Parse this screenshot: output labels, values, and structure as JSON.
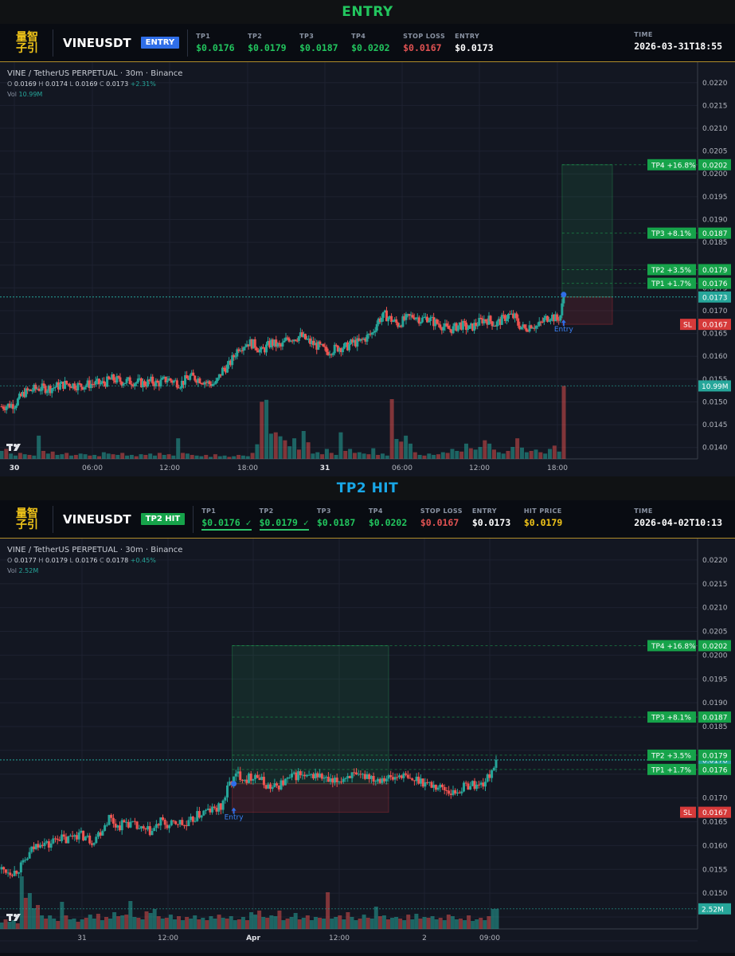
{
  "panels": [
    {
      "section_title": "ENTRY",
      "title_color": "#22c55e",
      "logo": [
        "量智",
        "子引"
      ],
      "symbol": "VINEUSDT",
      "badge": "ENTRY",
      "badge_color": "#2f6ee8",
      "fields": [
        {
          "label": "TP1",
          "value": "$0.0176",
          "color": "#22c55e",
          "hit": false
        },
        {
          "label": "TP2",
          "value": "$0.0179",
          "color": "#22c55e",
          "hit": false
        },
        {
          "label": "TP3",
          "value": "$0.0187",
          "color": "#22c55e",
          "hit": false
        },
        {
          "label": "TP4",
          "value": "$0.0202",
          "color": "#22c55e",
          "hit": false
        },
        {
          "label": "STOP LOSS",
          "value": "$0.0167",
          "color": "#e05252",
          "hit": false
        },
        {
          "label": "ENTRY",
          "value": "$0.0173",
          "color": "#ffffff",
          "hit": false
        }
      ],
      "time_label": "TIME",
      "time_value": "2026-03-31T18:55",
      "legend": {
        "title": "VINE / TetherUS PERPETUAL · 30m · Binance",
        "o": "0.0169",
        "h": "0.0174",
        "l": "0.0169",
        "c": "0.0173",
        "change": "+2.31%",
        "vol_label": "Vol",
        "vol": "10.99M"
      },
      "chart_data": {
        "type": "candlestick",
        "ylim": [
          0.01375,
          0.02245
        ],
        "yticks": [
          "0.0220",
          "0.0215",
          "0.0210",
          "0.0205",
          "0.0200",
          "0.0195",
          "0.0190",
          "0.0185",
          "0.0175",
          "0.0170",
          "0.0165",
          "0.0160",
          "0.0155",
          "0.0150",
          "0.0145",
          "0.0140"
        ],
        "xticks": [
          "30",
          "06:00",
          "12:00",
          "18:00",
          "31",
          "06:00",
          "12:00",
          "18:00"
        ],
        "bold_xticks": [
          "30",
          "31"
        ],
        "close_path": [
          [
            0,
            0.0149
          ],
          [
            8,
            0.01495
          ],
          [
            14,
            0.0152
          ],
          [
            22,
            0.0153
          ],
          [
            30,
            0.0153
          ],
          [
            40,
            0.0154
          ],
          [
            48,
            0.01535
          ],
          [
            56,
            0.0154
          ],
          [
            62,
            0.0154
          ],
          [
            68,
            0.0155
          ],
          [
            74,
            0.01545
          ],
          [
            80,
            0.01545
          ],
          [
            88,
            0.0154
          ],
          [
            92,
            0.01545
          ],
          [
            96,
            0.0154
          ],
          [
            102,
            0.0155
          ],
          [
            110,
            0.0154
          ],
          [
            116,
            0.01555
          ],
          [
            122,
            0.0155
          ],
          [
            128,
            0.0154
          ],
          [
            132,
            0.0154
          ],
          [
            136,
            0.0157
          ],
          [
            140,
            0.0158
          ],
          [
            146,
            0.0162
          ],
          [
            152,
            0.0163
          ],
          [
            156,
            0.01625
          ],
          [
            160,
            0.0161
          ],
          [
            166,
            0.0163
          ],
          [
            172,
            0.0162
          ],
          [
            176,
            0.0164
          ],
          [
            180,
            0.0164
          ],
          [
            184,
            0.01645
          ],
          [
            190,
            0.0163
          ],
          [
            196,
            0.0162
          ],
          [
            200,
            0.0161
          ],
          [
            204,
            0.01615
          ],
          [
            208,
            0.0162
          ],
          [
            212,
            0.0162
          ],
          [
            216,
            0.0163
          ],
          [
            220,
            0.0163
          ],
          [
            224,
            0.0164
          ],
          [
            228,
            0.0165
          ],
          [
            232,
            0.0168
          ],
          [
            236,
            0.0169
          ],
          [
            240,
            0.0168
          ],
          [
            244,
            0.0167
          ],
          [
            248,
            0.0168
          ],
          [
            254,
            0.0169
          ],
          [
            258,
            0.0168
          ],
          [
            262,
            0.01685
          ],
          [
            266,
            0.01675
          ],
          [
            270,
            0.0167
          ],
          [
            274,
            0.0166
          ],
          [
            278,
            0.0166
          ],
          [
            282,
            0.0167
          ],
          [
            288,
            0.0166
          ],
          [
            292,
            0.0167
          ],
          [
            296,
            0.0168
          ],
          [
            300,
            0.0168
          ],
          [
            304,
            0.0167
          ],
          [
            308,
            0.0168
          ],
          [
            312,
            0.0169
          ],
          [
            316,
            0.01685
          ],
          [
            318,
            0.0167
          ],
          [
            322,
            0.0166
          ],
          [
            326,
            0.0167
          ],
          [
            330,
            0.01665
          ],
          [
            334,
            0.0168
          ],
          [
            338,
            0.0169
          ],
          [
            342,
            0.0168
          ],
          [
            344,
            0.0169
          ],
          [
            346,
            0.0173
          ]
        ],
        "volumes_M": [
          1.2,
          1.5,
          0.8,
          0.5,
          0.9,
          0.7,
          0.6,
          0.5,
          3.5,
          1.2,
          0.8,
          1.1,
          0.6,
          0.7,
          0.9,
          0.5,
          0.6,
          0.8,
          0.7,
          0.5,
          0.6,
          0.4,
          1.0,
          0.8,
          0.7,
          0.6,
          0.9,
          0.5,
          0.6,
          0.4,
          0.7,
          0.6,
          0.8,
          0.5,
          0.9,
          0.6,
          0.7,
          0.5,
          3.1,
          0.9,
          0.8,
          0.6,
          0.5,
          0.4,
          0.6,
          0.3,
          0.7,
          0.4,
          0.5,
          0.3,
          0.4,
          0.6,
          0.5,
          0.4,
          0.9,
          2.2,
          8.6,
          8.9,
          3.8,
          4.0,
          3.4,
          2.8,
          1.9,
          3.1,
          1.4,
          4.2,
          2.5,
          0.8,
          1.0,
          0.7,
          1.5,
          0.9,
          0.6,
          4.0,
          1.2,
          1.5,
          0.9,
          1.0,
          0.8,
          0.7,
          1.6,
          0.6,
          0.8,
          0.5,
          9.0,
          3.0,
          2.6,
          3.5,
          2.3,
          1.0,
          0.6,
          0.5,
          0.8,
          0.6,
          0.7,
          1.0,
          0.9,
          1.5,
          1.2,
          1.1,
          2.3,
          1.6,
          1.4,
          1.8,
          2.8,
          2.3,
          1.4,
          1.0,
          0.8,
          1.2,
          1.8,
          3.1,
          1.7,
          1.0,
          1.2,
          1.4,
          1.0,
          0.8,
          1.5,
          2.0,
          1.1,
          10.99
        ],
        "targets": [
          {
            "tag": "TP4 +16.8%",
            "price": "0.0202",
            "value": 0.0202
          },
          {
            "tag": "TP3 +8.1%",
            "price": "0.0187",
            "value": 0.0187
          },
          {
            "tag": "TP2 +3.5%",
            "price": "0.0179",
            "value": 0.0179
          },
          {
            "tag": "TP1 +1.7%",
            "price": "0.0176",
            "value": 0.0176
          }
        ],
        "current_price": {
          "label": "0.0173",
          "value": 0.0173
        },
        "stop": {
          "tag": "SL",
          "price": "0.0167",
          "value": 0.0167
        },
        "entry": {
          "label": "Entry",
          "value": 0.0173
        },
        "volume_label": "10.99M",
        "trade_box": {
          "start": 346,
          "end": 376
        }
      }
    },
    {
      "section_title": "TP2 HIT",
      "title_color": "#19a8e8",
      "logo": [
        "量智",
        "子引"
      ],
      "symbol": "VINEUSDT",
      "badge": "TP2 HIT",
      "badge_color": "#16a34a",
      "fields": [
        {
          "label": "TP1",
          "value": "$0.0176 ✓",
          "color": "#22c55e",
          "hit": true
        },
        {
          "label": "TP2",
          "value": "$0.0179 ✓",
          "color": "#22c55e",
          "hit": true
        },
        {
          "label": "TP3",
          "value": "$0.0187",
          "color": "#22c55e",
          "hit": false
        },
        {
          "label": "TP4",
          "value": "$0.0202",
          "color": "#22c55e",
          "hit": false
        },
        {
          "label": "STOP LOSS",
          "value": "$0.0167",
          "color": "#e05252",
          "hit": false
        },
        {
          "label": "ENTRY",
          "value": "$0.0173",
          "color": "#ffffff",
          "hit": false
        },
        {
          "label": "HIT PRICE",
          "value": "$0.0179",
          "color": "#f0c419",
          "hit": false
        }
      ],
      "time_label": "TIME",
      "time_value": "2026-04-02T10:13",
      "legend": {
        "title": "VINE / TetherUS PERPETUAL · 30m · Binance",
        "o": "0.0177",
        "h": "0.0179",
        "l": "0.0176",
        "c": "0.0178",
        "change": "+0.45%",
        "vol_label": "Vol",
        "vol": "2.52M"
      },
      "chart_data": {
        "type": "candlestick",
        "ylim": [
          0.01425,
          0.02245
        ],
        "yticks": [
          "0.0220",
          "0.0215",
          "0.0210",
          "0.0205",
          "0.0200",
          "0.0195",
          "0.0190",
          "0.0185",
          "0.0170",
          "0.0165",
          "0.0160",
          "0.0155",
          "0.0150"
        ],
        "xticks": [
          "31",
          "12:00",
          "Apr",
          "12:00",
          "2",
          "09:00"
        ],
        "bold_xticks": [
          "Apr"
        ],
        "close_path": [
          [
            0,
            0.0155
          ],
          [
            6,
            0.01545
          ],
          [
            10,
            0.0156
          ],
          [
            14,
            0.0159
          ],
          [
            18,
            0.0161
          ],
          [
            22,
            0.016
          ],
          [
            26,
            0.0162
          ],
          [
            30,
            0.0161
          ],
          [
            34,
            0.01625
          ],
          [
            38,
            0.0162
          ],
          [
            42,
            0.0161
          ],
          [
            46,
            0.0163
          ],
          [
            50,
            0.0166
          ],
          [
            54,
            0.0164
          ],
          [
            58,
            0.0165
          ],
          [
            62,
            0.0164
          ],
          [
            66,
            0.0163
          ],
          [
            70,
            0.0163
          ],
          [
            74,
            0.0165
          ],
          [
            78,
            0.0164
          ],
          [
            82,
            0.0165
          ],
          [
            86,
            0.0164
          ],
          [
            90,
            0.0166
          ],
          [
            94,
            0.0167
          ],
          [
            98,
            0.01675
          ],
          [
            102,
            0.0168
          ],
          [
            106,
            0.0173
          ],
          [
            110,
            0.0175
          ],
          [
            114,
            0.0174
          ],
          [
            118,
            0.0175
          ],
          [
            122,
            0.0173
          ],
          [
            126,
            0.0172
          ],
          [
            130,
            0.0173
          ],
          [
            134,
            0.0174
          ],
          [
            138,
            0.0175
          ],
          [
            142,
            0.0174
          ],
          [
            146,
            0.0175
          ],
          [
            150,
            0.0174
          ],
          [
            154,
            0.0173
          ],
          [
            158,
            0.0174
          ],
          [
            162,
            0.0175
          ],
          [
            166,
            0.0174
          ],
          [
            170,
            0.0175
          ],
          [
            174,
            0.0174
          ],
          [
            178,
            0.01745
          ],
          [
            182,
            0.0174
          ],
          [
            186,
            0.0175
          ],
          [
            190,
            0.01735
          ],
          [
            194,
            0.0174
          ],
          [
            198,
            0.0173
          ],
          [
            202,
            0.01725
          ],
          [
            206,
            0.0172
          ],
          [
            210,
            0.0171
          ],
          [
            214,
            0.0172
          ],
          [
            218,
            0.0173
          ],
          [
            222,
            0.01725
          ],
          [
            226,
            0.0174
          ],
          [
            230,
            0.0178
          ]
        ],
        "volumes_M": [
          0.8,
          1.2,
          0.9,
          1.1,
          0.7,
          6.6,
          3.9,
          4.5,
          2.6,
          3.0,
          1.7,
          1.3,
          1.7,
          1.3,
          1.0,
          3.4,
          1.7,
          1.2,
          1.3,
          0.9,
          1.2,
          1.4,
          1.8,
          1.3,
          1.9,
          1.1,
          1.5,
          1.3,
          2.1,
          1.6,
          1.7,
          1.8,
          3.5,
          1.5,
          1.4,
          1.2,
          2.2,
          2.0,
          2.5,
          1.6,
          1.3,
          1.4,
          1.8,
          1.2,
          1.6,
          1.1,
          1.5,
          1.3,
          1.7,
          1.2,
          1.4,
          1.1,
          1.6,
          1.3,
          1.8,
          1.4,
          1.3,
          1.6,
          1.1,
          1.2,
          1.5,
          1.1,
          2.1,
          1.8,
          2.3,
          1.5,
          1.4,
          1.7,
          1.6,
          2.3,
          1.1,
          1.3,
          1.5,
          2.0,
          1.2,
          1.4,
          1.7,
          1.1,
          1.5,
          1.4,
          1.3,
          4.6,
          1.3,
          1.5,
          1.7,
          1.2,
          2.1,
          1.5,
          1.1,
          1.3,
          1.8,
          1.4,
          1.3,
          2.8,
          1.6,
          1.7,
          1.2,
          1.4,
          1.5,
          1.3,
          1.1,
          1.8,
          1.2,
          1.9,
          1.3,
          1.5,
          1.4,
          1.6,
          1.2,
          1.4,
          1.1,
          1.8,
          1.6,
          1.2,
          1.3,
          1.1,
          1.7,
          1.0,
          1.2,
          1.4,
          1.1,
          1.6,
          2.5,
          2.52
        ],
        "targets": [
          {
            "tag": "TP4 +16.8%",
            "price": "0.0202",
            "value": 0.0202
          },
          {
            "tag": "TP3 +8.1%",
            "price": "0.0187",
            "value": 0.0187
          },
          {
            "tag": "TP2 +3.5%",
            "price": "0.0179",
            "value": 0.0179
          },
          {
            "tag": "TP1 +1.7%",
            "price": "0.0176",
            "value": 0.0176
          }
        ],
        "current_price": {
          "label": "0.0178",
          "value": 0.0178
        },
        "stop": {
          "tag": "SL",
          "price": "0.0167",
          "value": 0.0167
        },
        "entry": {
          "label": "Entry",
          "value": 0.0173
        },
        "volume_label": "2.52M",
        "trade_box": {
          "start": 108,
          "end": 180
        }
      }
    }
  ]
}
